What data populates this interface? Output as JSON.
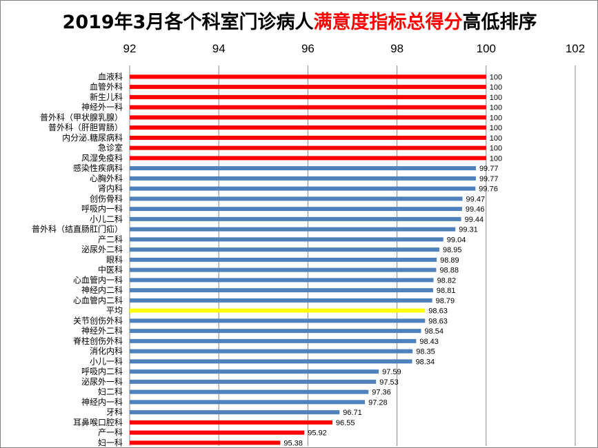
{
  "chart_data": {
    "type": "bar",
    "orientation": "horizontal",
    "title_parts": [
      "2019年3月各个科室门诊病人",
      "满意度指标总得分",
      "高低排序"
    ],
    "title_highlight_color": "#ff0000",
    "xlim": [
      92,
      102
    ],
    "xticks": [
      "92",
      "94",
      "96",
      "98",
      "100",
      "102"
    ],
    "xtick_values": [
      92,
      94,
      96,
      98,
      100,
      102
    ],
    "grid": true,
    "colors": {
      "high": "#ff0000",
      "normal": "#4f81bd",
      "average": "#ffff00",
      "low": "#ff0000"
    },
    "bars": [
      {
        "label": "血液科",
        "value": 100,
        "value_text": "100",
        "group": "high"
      },
      {
        "label": "血管外科",
        "value": 100,
        "value_text": "100",
        "group": "high"
      },
      {
        "label": "新生儿科",
        "value": 100,
        "value_text": "100",
        "group": "high"
      },
      {
        "label": "神经外一科",
        "value": 100,
        "value_text": "100",
        "group": "high"
      },
      {
        "label": "普外科（甲状腺乳腺）",
        "value": 100,
        "value_text": "100",
        "group": "high"
      },
      {
        "label": "普外科（肝胆胃肠）",
        "value": 100,
        "value_text": "100",
        "group": "high"
      },
      {
        "label": "内分泌.糖尿病科",
        "value": 100,
        "value_text": "100",
        "group": "high"
      },
      {
        "label": "急诊室",
        "value": 100,
        "value_text": "100",
        "group": "high"
      },
      {
        "label": "风湿免疫科",
        "value": 100,
        "value_text": "100",
        "group": "high"
      },
      {
        "label": "感染性疾病科",
        "value": 99.77,
        "value_text": "99.77",
        "group": "normal"
      },
      {
        "label": "心胸外科",
        "value": 99.77,
        "value_text": "99.77",
        "group": "normal"
      },
      {
        "label": "肾内科",
        "value": 99.76,
        "value_text": "99.76",
        "group": "normal"
      },
      {
        "label": "创伤骨科",
        "value": 99.47,
        "value_text": "99.47",
        "group": "normal"
      },
      {
        "label": "呼吸内一科",
        "value": 99.46,
        "value_text": "99.46",
        "group": "normal"
      },
      {
        "label": "小儿二科",
        "value": 99.44,
        "value_text": "99.44",
        "group": "normal"
      },
      {
        "label": "普外科（结直肠肛门疝）",
        "value": 99.31,
        "value_text": "99.31",
        "group": "normal"
      },
      {
        "label": "产二科",
        "value": 99.04,
        "value_text": "99.04",
        "group": "normal"
      },
      {
        "label": "泌尿外二科",
        "value": 98.95,
        "value_text": "98.95",
        "group": "normal"
      },
      {
        "label": "眼科",
        "value": 98.89,
        "value_text": "98.89",
        "group": "normal"
      },
      {
        "label": "中医科",
        "value": 98.88,
        "value_text": "98.88",
        "group": "normal"
      },
      {
        "label": "心血管内一科",
        "value": 98.82,
        "value_text": "98.82",
        "group": "normal"
      },
      {
        "label": "神经内二科",
        "value": 98.81,
        "value_text": "98.81",
        "group": "normal"
      },
      {
        "label": "心血管内二科",
        "value": 98.79,
        "value_text": "98.79",
        "group": "normal"
      },
      {
        "label": "平均",
        "value": 98.63,
        "value_text": "98.63",
        "group": "average"
      },
      {
        "label": "关节创伤外科",
        "value": 98.63,
        "value_text": "98.63",
        "group": "normal"
      },
      {
        "label": "神经外二科",
        "value": 98.54,
        "value_text": "98.54",
        "group": "normal"
      },
      {
        "label": "脊柱创伤外科",
        "value": 98.43,
        "value_text": "98.43",
        "group": "normal"
      },
      {
        "label": "消化内科",
        "value": 98.35,
        "value_text": "98.35",
        "group": "normal"
      },
      {
        "label": "小儿一科",
        "value": 98.34,
        "value_text": "98.34",
        "group": "normal"
      },
      {
        "label": "呼吸内二科",
        "value": 97.59,
        "value_text": "97.59",
        "group": "normal"
      },
      {
        "label": "泌尿外一科",
        "value": 97.53,
        "value_text": "97.53",
        "group": "normal"
      },
      {
        "label": "妇二科",
        "value": 97.36,
        "value_text": "97.36",
        "group": "normal"
      },
      {
        "label": "神经内一科",
        "value": 97.28,
        "value_text": "97.28",
        "group": "normal"
      },
      {
        "label": "牙科",
        "value": 96.71,
        "value_text": "96.71",
        "group": "normal"
      },
      {
        "label": "耳鼻喉口腔科",
        "value": 96.55,
        "value_text": "96.55",
        "group": "low"
      },
      {
        "label": "产一科",
        "value": 95.92,
        "value_text": "95.92",
        "group": "low"
      },
      {
        "label": "妇一科",
        "value": 95.38,
        "value_text": "95.38",
        "group": "low"
      }
    ]
  }
}
